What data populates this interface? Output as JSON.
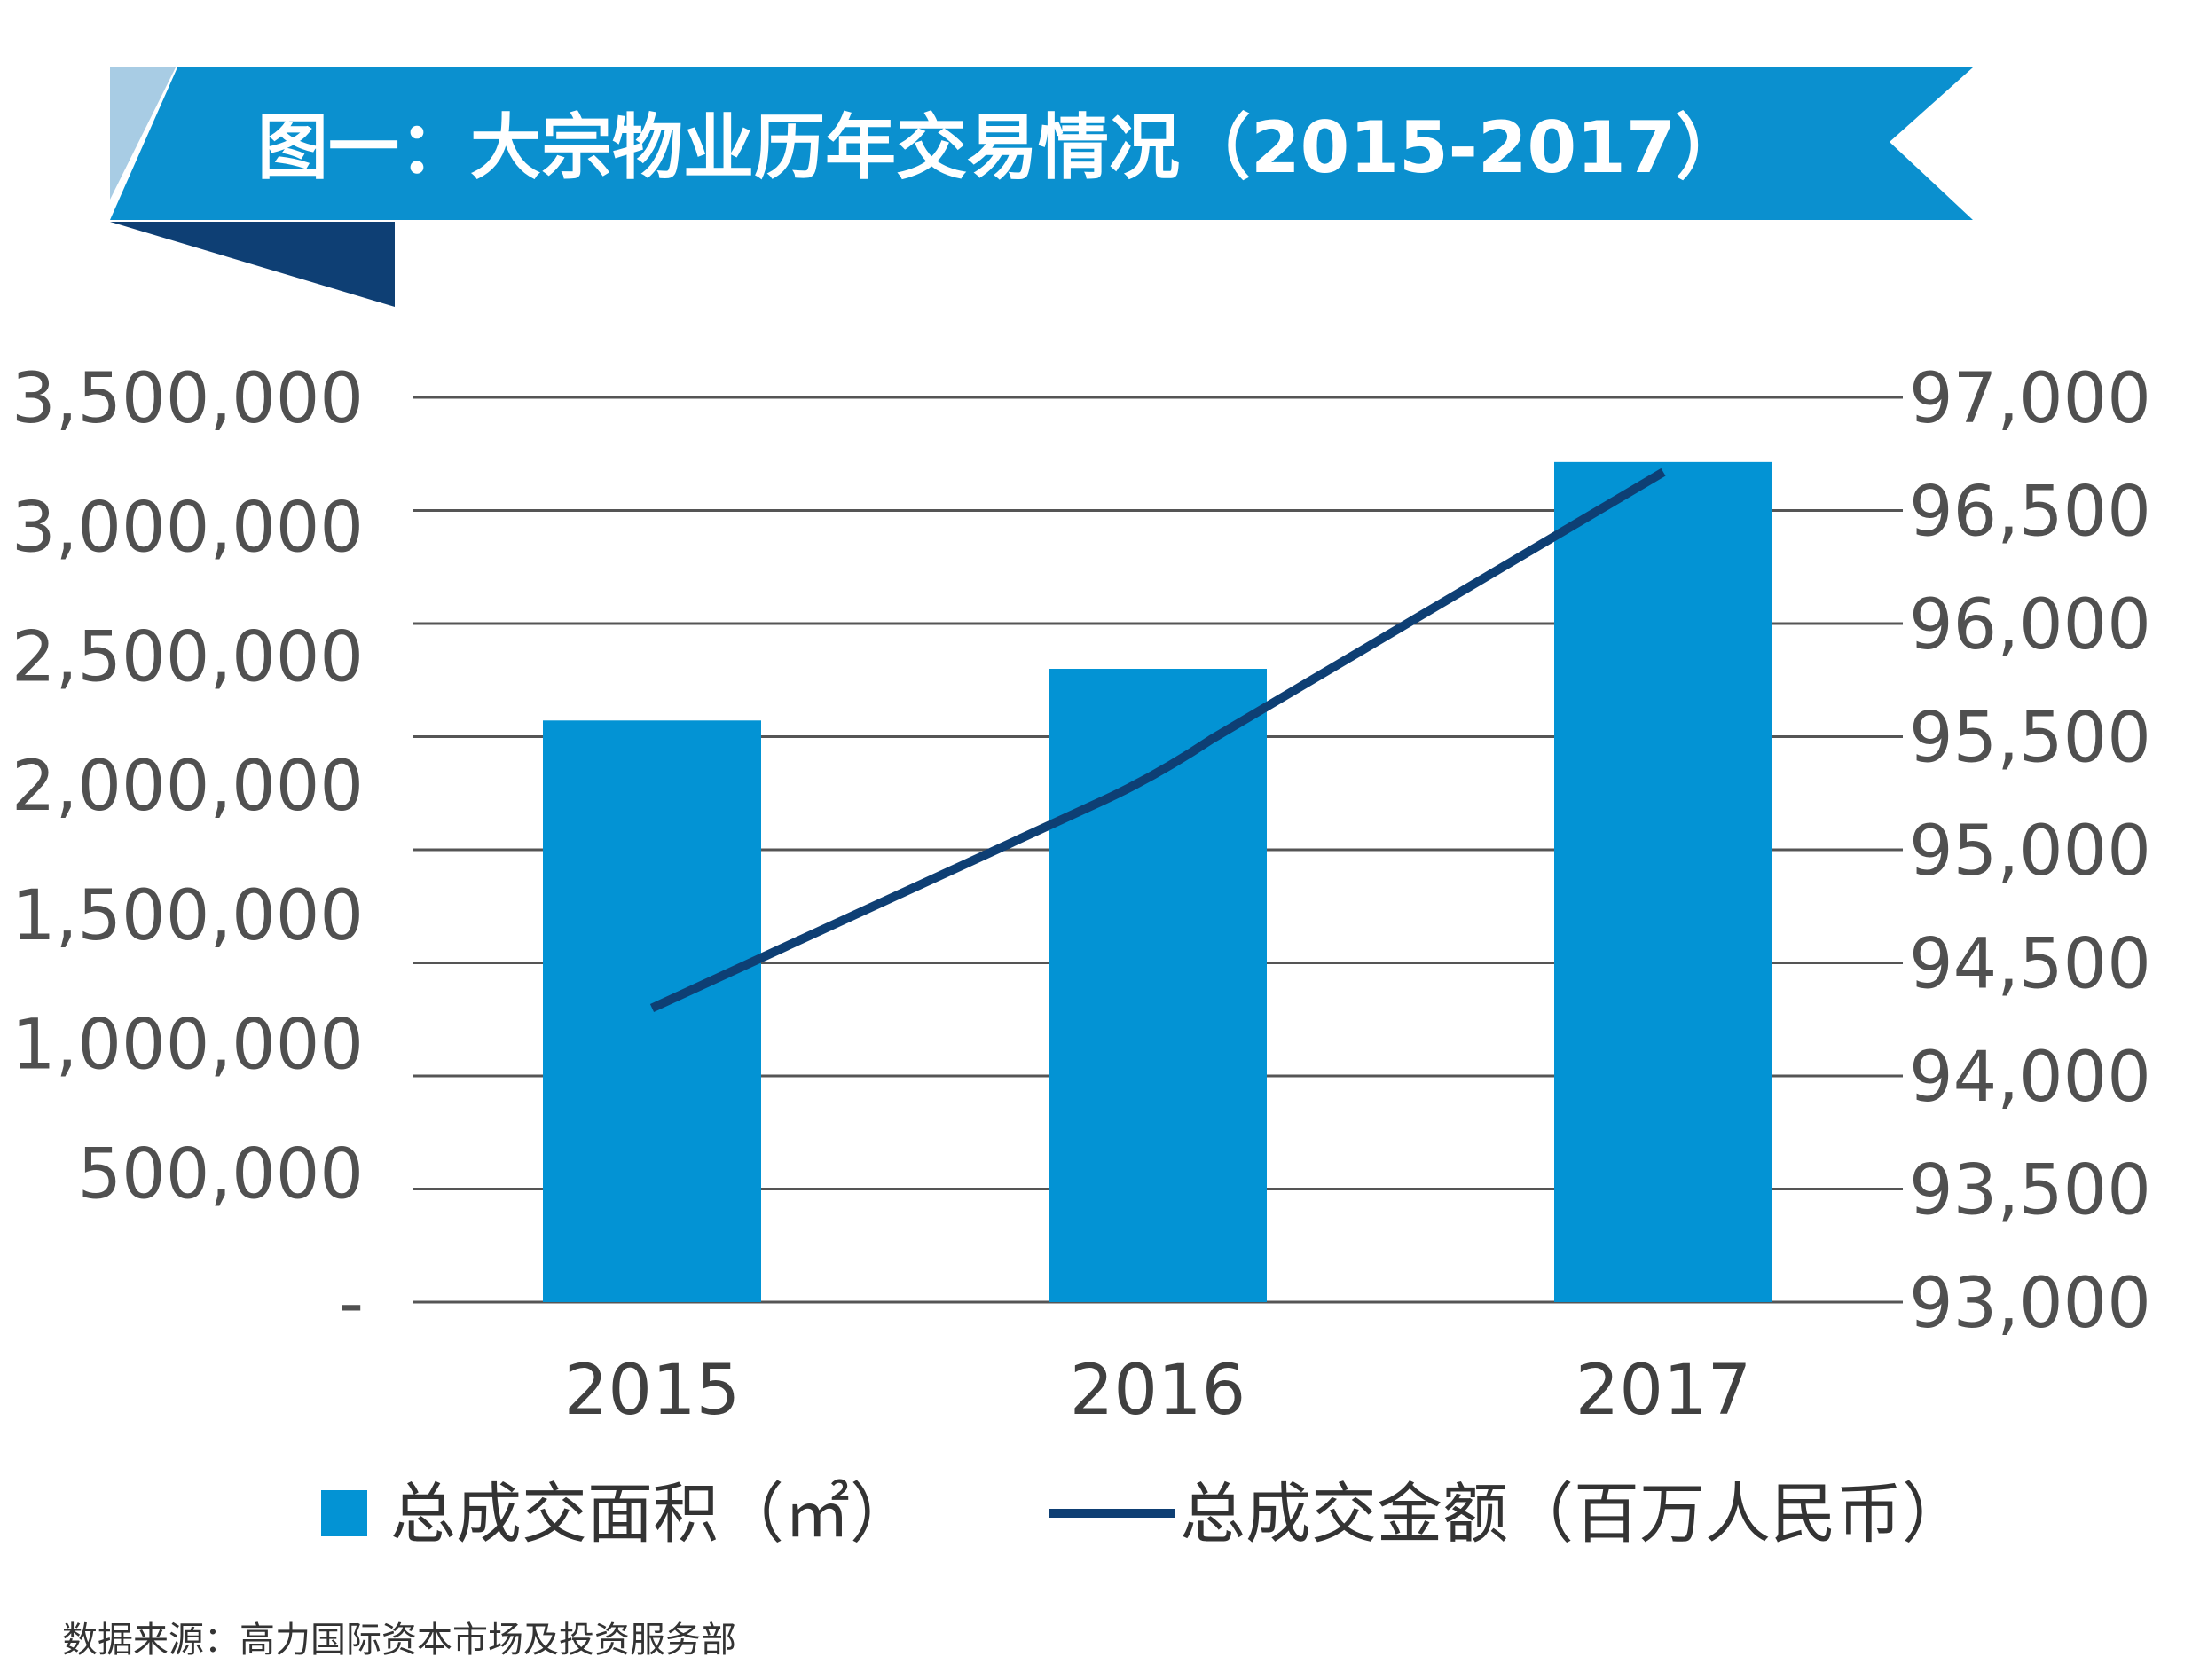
{
  "colors": {
    "bar": "#0393d4",
    "line": "#0e3f74",
    "banner": "#0b90cf",
    "banner_light": "#a8cce4",
    "banner_dark": "#0e3f74",
    "grid": "#555555"
  },
  "chart_data": {
    "type": "bar",
    "title": "图一：大宗物业历年交易情况（2015-2017）",
    "categories": [
      "2015",
      "2016",
      "2017"
    ],
    "series": [
      {
        "name": "总成交面积（㎡）",
        "type": "bar",
        "axis": "left",
        "values": [
          2250000,
          2450000,
          3250000
        ]
      },
      {
        "name": "总成交金额（百万人民币）",
        "type": "line",
        "axis": "right",
        "values": [
          94300,
          95330,
          96670
        ]
      }
    ],
    "y_left": {
      "ylim": [
        0,
        3500000
      ],
      "ticks": [
        0,
        500000,
        1000000,
        1500000,
        2000000,
        2500000,
        3000000,
        3500000
      ],
      "tick_labels": [
        "-",
        "500,000",
        "1,000,000",
        "1,500,000",
        "2,000,000",
        "2,500,000",
        "3,000,000",
        "3,500,000"
      ]
    },
    "y_right": {
      "ylim": [
        93000,
        97000
      ],
      "ticks": [
        93000,
        93500,
        94000,
        94500,
        95000,
        95500,
        96000,
        96500,
        97000
      ],
      "tick_labels": [
        "93,000",
        "93,500",
        "94,000",
        "94,500",
        "95,000",
        "95,500",
        "96,000",
        "96,500",
        "97,000"
      ]
    },
    "grid": true,
    "legend_position": "bottom",
    "source": "数据来源：高力国际资本市场及投资服务部"
  }
}
